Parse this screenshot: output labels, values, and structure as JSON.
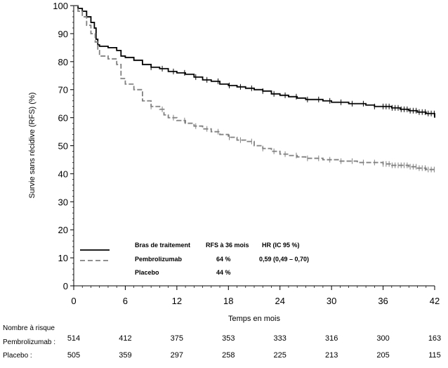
{
  "chart_data": {
    "type": "line",
    "title": "",
    "xlabel": "Temps en mois",
    "ylabel": "Survie sans récidive (RFS) (%)",
    "xlim": [
      0,
      42
    ],
    "ylim": [
      0,
      100
    ],
    "x_ticks": [
      0,
      6,
      12,
      18,
      24,
      30,
      36,
      42
    ],
    "y_ticks": [
      0,
      10,
      20,
      30,
      40,
      50,
      60,
      70,
      80,
      90,
      100
    ],
    "grid": false,
    "series": [
      {
        "name": "Pembrolizumab",
        "color": "#000000",
        "style": "solid",
        "x": [
          0,
          0.5,
          1.0,
          1.5,
          2.0,
          2.4,
          2.6,
          2.8,
          3.0,
          4.0,
          5.0,
          5.5,
          6.0,
          7.0,
          8.0,
          9.0,
          10.0,
          11.0,
          12.0,
          13.0,
          14.0,
          15.0,
          16.0,
          17.0,
          18.0,
          19.0,
          20.0,
          21.0,
          22.0,
          23.0,
          24.0,
          25.0,
          26.0,
          27.0,
          28.0,
          29.0,
          30.0,
          31.0,
          32.0,
          33.0,
          34.0,
          35.0,
          36.0,
          37.0,
          38.0,
          39.0,
          40.0,
          41.0,
          42.0
        ],
        "y": [
          100,
          99,
          98,
          96,
          94,
          92,
          88,
          86,
          85.5,
          85,
          84,
          82,
          81.5,
          80.5,
          79,
          78,
          77.5,
          76.5,
          76,
          75.5,
          74.5,
          73.5,
          73,
          72,
          71.5,
          71,
          70.5,
          70,
          69.5,
          68.5,
          68,
          67.5,
          67,
          66.5,
          66.5,
          66,
          65.5,
          65.5,
          65,
          65,
          64.5,
          64,
          64,
          63.5,
          63,
          62.5,
          62,
          61.5,
          60
        ]
      },
      {
        "name": "Placebo",
        "color": "#808080",
        "style": "dashed",
        "x": [
          0,
          0.5,
          1.0,
          1.5,
          2.0,
          2.5,
          2.8,
          3.0,
          4.0,
          5.0,
          5.5,
          6.0,
          7.0,
          8.0,
          9.0,
          10.0,
          10.5,
          11.0,
          12.0,
          13.0,
          14.0,
          15.0,
          16.0,
          17.0,
          18.0,
          19.0,
          20.0,
          21.0,
          22.0,
          23.0,
          24.0,
          25.0,
          26.0,
          27.0,
          28.0,
          29.0,
          30.0,
          31.0,
          32.0,
          33.0,
          34.0,
          35.0,
          36.0,
          37.0,
          38.0,
          39.0,
          40.0,
          41.0,
          42.0
        ],
        "y": [
          100,
          98,
          96,
          93,
          90,
          87,
          84,
          82,
          81,
          79,
          74,
          72,
          70,
          66,
          64,
          63,
          61,
          60,
          59,
          58,
          57,
          56,
          55,
          54,
          53,
          52,
          51.5,
          50,
          49,
          48,
          47,
          46.5,
          46,
          45.5,
          45.5,
          45,
          45,
          44.5,
          44.5,
          44,
          44,
          44,
          43.5,
          43,
          43,
          42.5,
          42,
          41.5,
          41
        ]
      }
    ]
  },
  "legend": {
    "header_arm": "Bras de traitement",
    "header_rfs": "RFS à 36 mois",
    "header_hr": "HR (IC 95 %)",
    "rows": [
      {
        "name": "Pembrolizumab",
        "rfs": "64 %",
        "hr": "0,59 (0,49 – 0,70)"
      },
      {
        "name": "Placebo",
        "rfs": "44 %",
        "hr": ""
      }
    ]
  },
  "risk_table": {
    "title": "Nombre à risque",
    "rows": [
      {
        "label": "Pembrolizumab :",
        "values": [
          "514",
          "412",
          "375",
          "353",
          "333",
          "316",
          "300",
          "163"
        ]
      },
      {
        "label": "Placebo :",
        "values": [
          "505",
          "359",
          "297",
          "258",
          "225",
          "213",
          "205",
          "115"
        ]
      }
    ]
  }
}
